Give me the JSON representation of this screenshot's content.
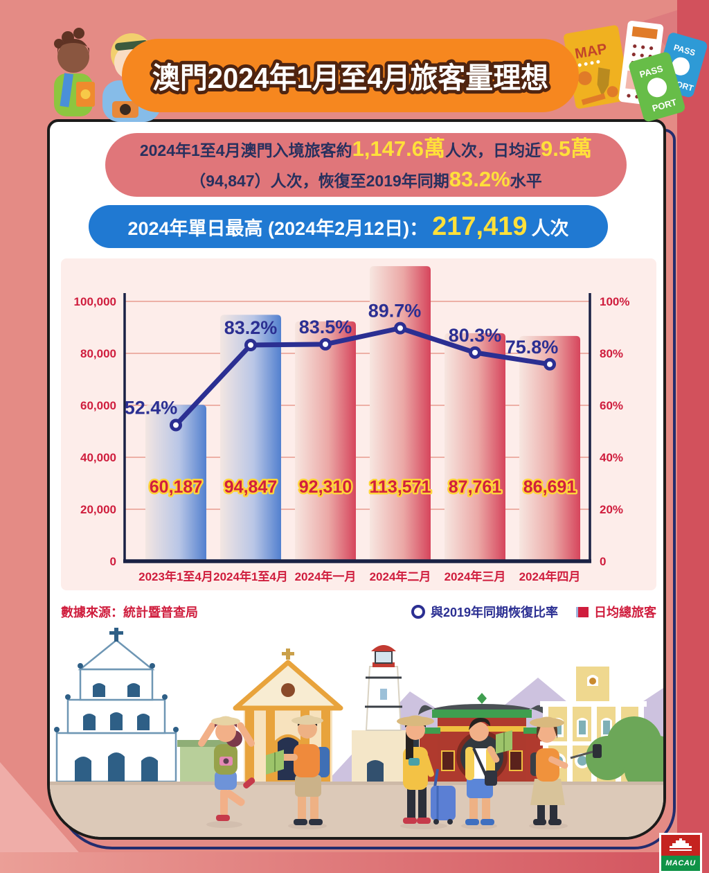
{
  "colors": {
    "background": "#e48b85",
    "background_right": "#d2515c",
    "background_bottomleft": "#efada8",
    "banner_orange": "#f6871f",
    "banner_text_stroke": "#4f2410",
    "card_border": "#1c1b1a",
    "card_offset_border": "#232d6e",
    "pill_red_bg": "#e0767a",
    "pill_blue_bg": "#2079d2",
    "dark_navy_text": "#27305e",
    "highlight_yellow": "#ffe03a",
    "crimson": "#cf1d3d",
    "line_navy": "#2b2f92",
    "bar_blue": "#5280cf",
    "bar_red": "#d6455c",
    "panel_bg": "#fdedea"
  },
  "header": {
    "title": "澳門2024年1月至4月旅客量理想",
    "right_art": {
      "map_label": "MAP",
      "passport_top": "PASS",
      "passport_bottom": "PORT"
    }
  },
  "summary": {
    "line1_part1": "2024年1至4月澳門入境旅客約",
    "line1_value1": "1,147.6萬",
    "line1_part2": "人次，日均近",
    "line1_value2": "9.5萬",
    "line2_part1": "（94,847）人次，恢復至2019年同期",
    "line2_value": "83.2%",
    "line2_part2": "水平"
  },
  "peak": {
    "label": "2024年單日最高 (2024年2月12日)：",
    "value": "217,419",
    "unit": "人次"
  },
  "chart_data": {
    "type": "combo",
    "categories": [
      "2023年1至4月",
      "2024年1至4月",
      "2024年一月",
      "2024年二月",
      "2024年三月",
      "2024年四月"
    ],
    "series": [
      {
        "name": "日均總旅客",
        "type": "bar",
        "values": [
          60187,
          94847,
          92310,
          113571,
          87761,
          86691
        ],
        "bar_colors": [
          "blue",
          "blue",
          "red",
          "red",
          "red",
          "red"
        ]
      },
      {
        "name": "與2019年同期恢復比率",
        "type": "line",
        "values": [
          52.4,
          83.2,
          83.5,
          89.7,
          80.3,
          75.8
        ],
        "unit": "%"
      }
    ],
    "left_axis": {
      "min": 0,
      "max": 100000,
      "ticks": [
        0,
        20000,
        40000,
        60000,
        80000,
        100000
      ]
    },
    "right_axis": {
      "min": 0,
      "max": 100,
      "ticks": [
        0,
        20,
        40,
        60,
        80,
        100
      ],
      "suffix": "%"
    },
    "grid": true,
    "legend_position": "bottom-right"
  },
  "legend": {
    "source": "數據來源：統計暨普查局",
    "line_label": "與2019年同期恢復比率",
    "bar_label": "日均總旅客"
  },
  "logo": {
    "name": "MACAU"
  }
}
